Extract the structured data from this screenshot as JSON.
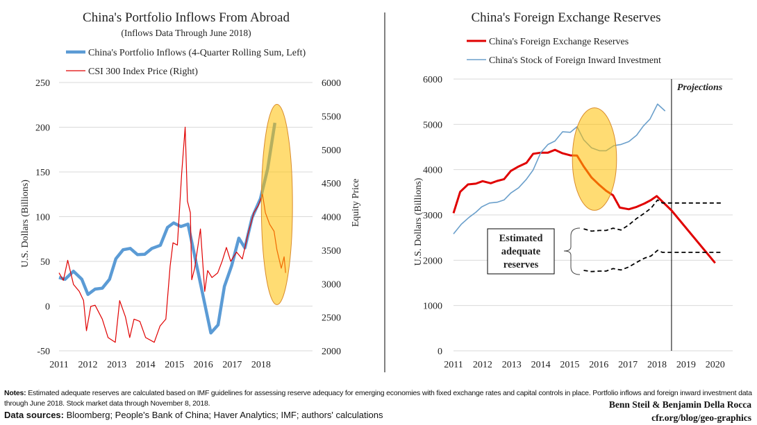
{
  "chart_data": [
    {
      "type": "line",
      "title": "China's Portfolio Inflows From Abroad",
      "subtitle": "(Inflows Data Through June 2018)",
      "ylabel": "U.S. Dollars (Billions)",
      "ylabel_right": "Equity Price",
      "ylim": [
        -50,
        250
      ],
      "ylim_right": [
        2000,
        6000
      ],
      "xlim": [
        2011,
        2018.85
      ],
      "xticks": [
        "2011",
        "2012",
        "2013",
        "2014",
        "2015",
        "2016",
        "2017",
        "2018"
      ],
      "yticks": [
        "-50",
        "0",
        "50",
        "100",
        "150",
        "200",
        "250"
      ],
      "yticks_right": [
        "2000",
        "2500",
        "3000",
        "3500",
        "4000",
        "4500",
        "5000",
        "5500",
        "6000"
      ],
      "grid": true,
      "legend": "top-left",
      "series": [
        {
          "name": "China's Portfolio Inflows (4-Quarter Rolling Sum, Left)",
          "axis": "left",
          "color": "#5b9bd5",
          "x": [
            2011.0,
            2011.21,
            2011.5,
            2011.79,
            2012.0,
            2012.25,
            2012.5,
            2012.75,
            2012.97,
            2013.22,
            2013.47,
            2013.72,
            2013.97,
            2014.22,
            2014.51,
            2014.76,
            2014.97,
            2015.22,
            2015.47,
            2016.26,
            2016.51,
            2016.73,
            2016.98,
            2017.23,
            2017.44,
            2017.69,
            2017.98,
            2018.23,
            2018.48
          ],
          "y": [
            32,
            30,
            39,
            30,
            13,
            19,
            20,
            30,
            53,
            63,
            64.5,
            57.5,
            58,
            64.5,
            68,
            88,
            93,
            89,
            91.6,
            -30,
            -21,
            22,
            45,
            76,
            65,
            99,
            120,
            153.6,
            205
          ]
        },
        {
          "name": "CSI 300 Index Price (Right)",
          "axis": "right",
          "color": "#e00000",
          "x": [
            2011.0,
            2011.15,
            2011.3,
            2011.5,
            2011.7,
            2011.85,
            2011.95,
            2012.1,
            2012.25,
            2012.5,
            2012.7,
            2012.95,
            2013.1,
            2013.3,
            2013.45,
            2013.6,
            2013.8,
            2014.0,
            2014.3,
            2014.5,
            2014.7,
            2014.85,
            2014.95,
            2015.1,
            2015.25,
            2015.37,
            2015.45,
            2015.55,
            2015.6,
            2015.7,
            2015.9,
            2016.05,
            2016.15,
            2016.3,
            2016.5,
            2016.65,
            2016.8,
            2016.95,
            2017.15,
            2017.35,
            2017.55,
            2017.75,
            2017.9,
            2018.05,
            2018.15,
            2018.3,
            2018.45,
            2018.55,
            2018.7,
            2018.8,
            2018.85
          ],
          "y": [
            3162,
            3050,
            3350,
            2990,
            2886,
            2750,
            2300,
            2662,
            2680,
            2472,
            2197,
            2127,
            2748,
            2507,
            2197,
            2472,
            2438,
            2197,
            2127,
            2369,
            2472,
            3265,
            3610,
            3576,
            4645,
            5334,
            4231,
            4059,
            3059,
            3231,
            3817,
            2886,
            3197,
            3093,
            3162,
            3334,
            3541,
            3334,
            3472,
            3369,
            3748,
            4059,
            4162,
            4334,
            4059,
            3886,
            3783,
            3507,
            3231,
            3403,
            3162
          ]
        }
      ],
      "highlight": {
        "shape": "ellipse",
        "color": "#ffc000",
        "center": [
          2018.55,
          113.6
        ],
        "radius_x_years": 0.54,
        "radius_y": 112
      }
    },
    {
      "type": "line",
      "title": "China's Foreign Exchange Reserves",
      "ylabel": "U.S. Dollars (Billions)",
      "ylim": [
        0,
        6000
      ],
      "xlim": [
        2011,
        2020.27
      ],
      "xticks": [
        "2011",
        "2012",
        "2013",
        "2014",
        "2015",
        "2016",
        "2017",
        "2018",
        "2019",
        "2020"
      ],
      "yticks": [
        "0",
        "1000",
        "2000",
        "3000",
        "4000",
        "5000",
        "6000"
      ],
      "grid": true,
      "legend": "top-left",
      "series": [
        {
          "name": "China's Foreign Exchange Reserves",
          "color": "#e00000",
          "x": [
            2011.0,
            2011.23,
            2011.5,
            2011.77,
            2012.0,
            2012.28,
            2012.5,
            2012.74,
            2012.97,
            2013.24,
            2013.51,
            2013.74,
            2014.01,
            2014.25,
            2014.49,
            2014.75,
            2015.02,
            2015.25,
            2015.48,
            2015.75,
            2016.02,
            2016.25,
            2016.49,
            2016.72,
            2017.03,
            2017.3,
            2017.57,
            2017.8,
            2017.99,
            2018.5,
            2020.0
          ],
          "y": [
            3040,
            3510,
            3673,
            3690,
            3745,
            3700,
            3750,
            3790,
            3970,
            4070,
            4150,
            4350,
            4375,
            4375,
            4437,
            4360,
            4315,
            4310,
            4070,
            3825,
            3660,
            3534,
            3432,
            3162,
            3126,
            3177,
            3253,
            3330,
            3417,
            3100,
            1940
          ]
        },
        {
          "name": "China's Stock of Foreign Inward Investment",
          "color": "#6a9fcb",
          "x": [
            2011.0,
            2011.27,
            2011.54,
            2011.77,
            2011.97,
            2012.24,
            2012.5,
            2012.74,
            2012.97,
            2013.24,
            2013.51,
            2013.74,
            2014.0,
            2014.25,
            2014.49,
            2014.75,
            2015.02,
            2015.25,
            2015.48,
            2015.75,
            2016.02,
            2016.25,
            2016.52,
            2016.76,
            2017.03,
            2017.3,
            2017.53,
            2017.76,
            2018.02,
            2018.28
          ],
          "y": [
            2580,
            2795,
            2950,
            3060,
            3177,
            3264,
            3280,
            3330,
            3483,
            3600,
            3790,
            3994,
            4375,
            4555,
            4632,
            4835,
            4825,
            4947,
            4658,
            4480,
            4417,
            4417,
            4530,
            4555,
            4620,
            4760,
            4962,
            5115,
            5447,
            5294
          ]
        },
        {
          "style": "dashed",
          "color": "#000000",
          "x": [
            2015.48,
            2015.75,
            2016.02,
            2016.25,
            2016.49,
            2016.76,
            2017.03,
            2017.3,
            2017.57,
            2017.8,
            2018.02,
            2018.19,
            2020.27
          ],
          "y": [
            2693,
            2642,
            2657,
            2657,
            2708,
            2667,
            2780,
            2922,
            3040,
            3152,
            3330,
            3264,
            3264
          ]
        },
        {
          "style": "dashed",
          "color": "#000000",
          "x": [
            2015.48,
            2015.75,
            2016.02,
            2016.25,
            2016.49,
            2016.76,
            2017.03,
            2017.3,
            2017.57,
            2017.8,
            2018.02,
            2018.19,
            2020.27
          ],
          "y": [
            1775,
            1750,
            1760,
            1760,
            1815,
            1785,
            1850,
            1953,
            2045,
            2096,
            2218,
            2173,
            2173
          ]
        }
      ],
      "projection_start": 2018.5,
      "annotations": {
        "projections": "Projections",
        "box_lines": [
          "Estimated",
          "adequate",
          "reserves"
        ]
      },
      "highlight": {
        "shape": "ellipse",
        "color": "#ffc000",
        "center": [
          2015.85,
          4233
        ],
        "radius_x_years": 0.76,
        "radius_y": 1132
      }
    }
  ],
  "footer": {
    "notes_label": "Notes:",
    "notes_text": " Estimated adequate reserves are calculated based on IMF guidelines for assessing reserve adequacy for emerging economies with fixed exchange rates and capital controls in place. Portfolio inflows and foreign inward investment data through June 2018. Stock market data through November 8, 2018.",
    "sources_label": "Data sources:",
    "sources_text": " Bloomberg; People's Bank of China; Haver Analytics; IMF; authors' calculations",
    "authors": "Benn Steil & Benjamin Della Rocca",
    "url": "cfr.org/blog/geo-graphics"
  }
}
